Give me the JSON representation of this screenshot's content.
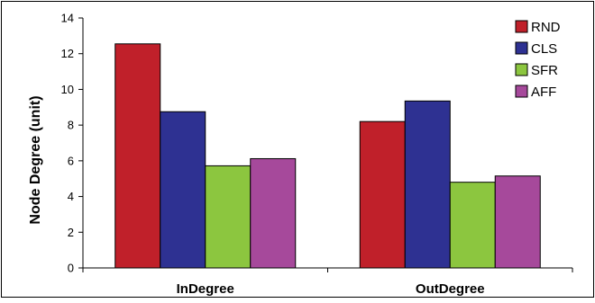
{
  "chart_data": {
    "type": "bar",
    "title": "",
    "xlabel": "",
    "ylabel": "Node Degree (unit)",
    "categories": [
      "InDegree",
      "OutDegree"
    ],
    "series": [
      {
        "name": "RND",
        "values": [
          12.55,
          8.2
        ],
        "color": "#c0202a"
      },
      {
        "name": "CLS",
        "values": [
          8.75,
          9.35
        ],
        "color": "#2e3192"
      },
      {
        "name": "SFR",
        "values": [
          5.72,
          4.8
        ],
        "color": "#8cc63f"
      },
      {
        "name": "AFF",
        "values": [
          6.12,
          5.15
        ],
        "color": "#a6499b"
      }
    ],
    "ylim": [
      0,
      14
    ],
    "yticks": [
      "0",
      "2",
      "4",
      "6",
      "8",
      "10",
      "12",
      "14"
    ],
    "grid": false,
    "legend_position": "top-right"
  }
}
